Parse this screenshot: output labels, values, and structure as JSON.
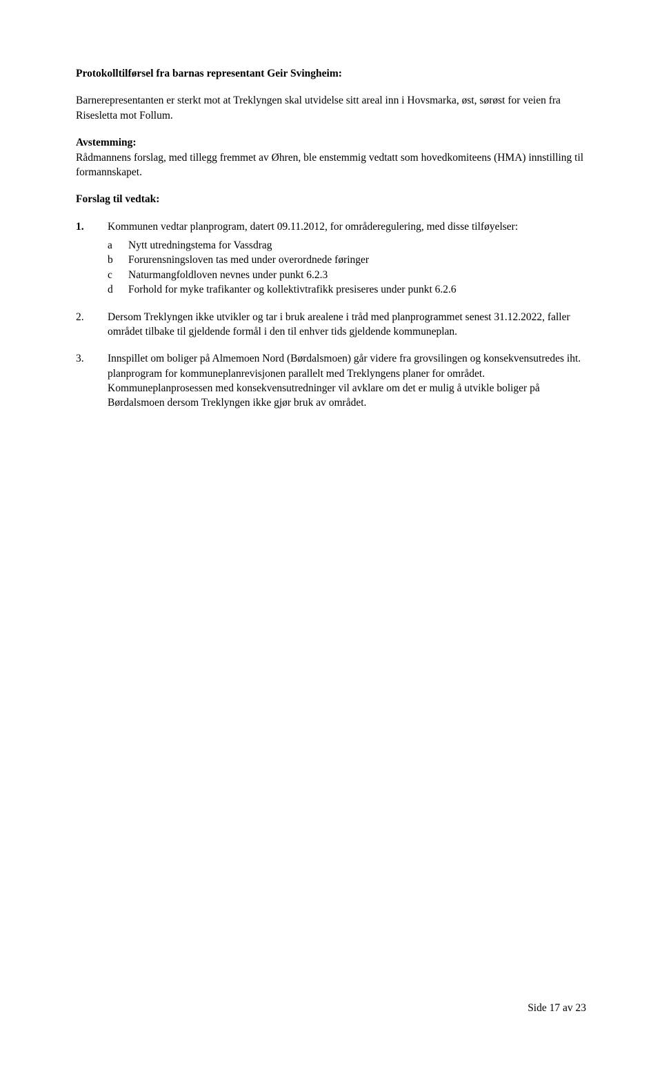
{
  "document": {
    "protocolHeading": "Protokolltilførsel fra barnas representant Geir Svingheim:",
    "protocolBody": "Barnerepresentanten er sterkt mot at Treklyngen skal utvidelse sitt areal inn i Hovsmarka, øst, sørøst for veien fra Risesletta mot Follum.",
    "votingHeading": "Avstemming:",
    "votingBody": "Rådmannens forslag, med tillegg fremmet av Øhren, ble enstemmig vedtatt som hovedkomiteens (HMA) innstilling til formannskapet.",
    "proposalHeading": "Forslag til vedtak:",
    "item1": {
      "num": "1.",
      "intro": "Kommunen vedtar planprogram, datert 09.11.2012, for områderegulering, med disse tilføyelser:",
      "sub": {
        "a": {
          "letter": "a",
          "text": "Nytt utredningstema for Vassdrag"
        },
        "b": {
          "letter": "b",
          "text": "Forurensningsloven tas med under overordnede føringer"
        },
        "c": {
          "letter": "c",
          "text": "Naturmangfoldloven nevnes under punkt 6.2.3"
        },
        "d": {
          "letter": "d",
          "text": "Forhold for myke trafikanter og kollektivtrafikk presiseres under punkt 6.2.6"
        }
      }
    },
    "item2": {
      "num": "2.",
      "text": "Dersom Treklyngen ikke utvikler og tar i bruk arealene i tråd med planprogrammet senest 31.12.2022, faller området tilbake til gjeldende formål i den til enhver tids gjeldende kommuneplan."
    },
    "item3": {
      "num": "3.",
      "text": "Innspillet om boliger på Almemoen Nord (Børdalsmoen) går videre fra grovsilingen og konsekvensutredes iht. planprogram for kommuneplanrevisjonen parallelt med Treklyngens planer for området. Kommuneplanprosessen med konsekvensutredninger vil avklare om det er mulig å utvikle boliger på Børdalsmoen dersom Treklyngen ikke gjør bruk av området."
    },
    "footer": "Side 17 av 23"
  }
}
